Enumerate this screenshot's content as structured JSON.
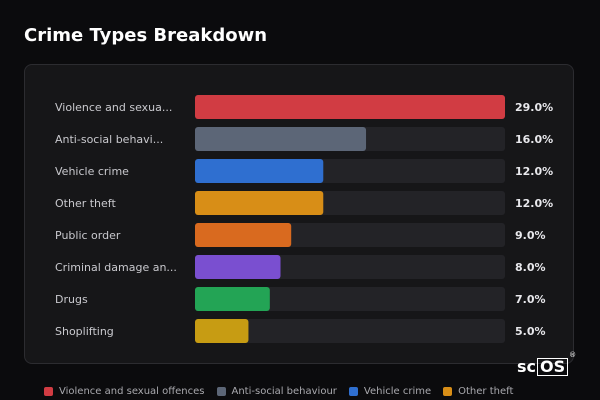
{
  "title": "Crime Types Breakdown",
  "chart_data": {
    "type": "bar",
    "orientation": "horizontal",
    "categories": [
      "Violence and sexua...",
      "Anti-social behavi...",
      "Vehicle crime",
      "Other theft",
      "Public order",
      "Criminal damage an...",
      "Drugs",
      "Shoplifting"
    ],
    "values": [
      29.0,
      16.0,
      12.0,
      12.0,
      9.0,
      8.0,
      7.0,
      5.0
    ],
    "value_labels": [
      "29.0%",
      "16.0%",
      "12.0%",
      "12.0%",
      "9.0%",
      "8.0%",
      "7.0%",
      "5.0%"
    ],
    "colors": [
      "#d13c43",
      "#5c6677",
      "#2f6fd0",
      "#d88e17",
      "#d96a1f",
      "#7a4fd0",
      "#23a455",
      "#c79c13"
    ],
    "xlim": [
      0,
      29.0
    ],
    "grid": false,
    "legend_position": "bottom"
  },
  "legend": [
    {
      "label": "Violence and sexual offences",
      "color": "#d13c43"
    },
    {
      "label": "Anti-social behaviour",
      "color": "#5c6677"
    },
    {
      "label": "Vehicle crime",
      "color": "#2f6fd0"
    },
    {
      "label": "Other theft",
      "color": "#d88e17"
    }
  ],
  "logo": {
    "prefix": "sc",
    "boxed": "OS",
    "mark": "®"
  }
}
